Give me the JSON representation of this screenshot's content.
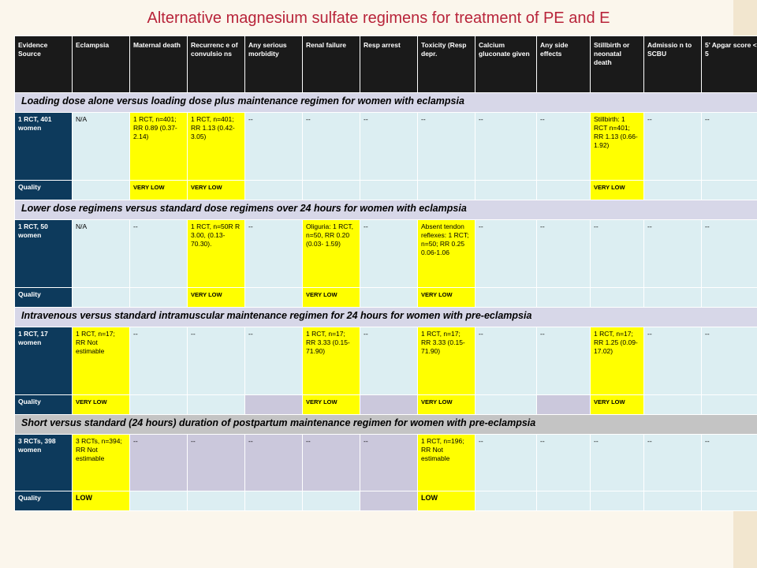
{
  "title": "Alternative magnesium sulfate regimens for treatment of PE and E",
  "headers": [
    "Evidence Source",
    "Eclampsia",
    "Maternal death",
    "Recurrenc e of convulsio ns",
    "Any serious morbidity",
    "Renal failure",
    "Resp arrest",
    "Toxicity (Resp depr.",
    "Calcium gluconate given",
    "Any side effects",
    "Stillbirth or neonatal death",
    "Admissio n to SCBU",
    "5' Apgar score < 5"
  ],
  "sections": [
    {
      "title": "Loading dose alone versus loading dose plus maintenance regimen for women with eclampsia",
      "row": [
        "1 RCT, 401 women",
        "N/A",
        "1 RCT, n=401; RR 0.89 (0.37-2.14)",
        "1 RCT, n=401; RR 1.13 (0.42-3.05)",
        "--",
        "--",
        "--",
        "--",
        "--",
        "--",
        "Stillbirth: 1 RCT n=401; RR 1.13 (0.66- 1.92)",
        "--",
        "--"
      ],
      "quality": [
        "Quality",
        "",
        "VERY LOW",
        "VERY LOW",
        "",
        "",
        "",
        "",
        "",
        "",
        "VERY LOW",
        "",
        ""
      ]
    },
    {
      "title": "Lower dose regimens versus standard dose regimens over 24 hours for women with eclampsia",
      "row": [
        "1 RCT, 50 women",
        "N/A",
        "--",
        "1 RCT, n=50R R 3.00, (0.13- 70.30).",
        "--",
        "Oliguria: 1 RCT, n=50, RR 0.20 (0.03- 1.59)",
        "--",
        "Absent tendon reflexes: 1 RCT; n=50; RR 0.25 0.06-1.06",
        "--",
        "--",
        "--",
        "--",
        "--"
      ],
      "quality": [
        "Quality",
        "",
        "",
        "VERY LOW",
        "",
        "VERY LOW",
        "",
        "VERY LOW",
        "",
        "",
        "",
        "",
        ""
      ]
    },
    {
      "title": "Intravenous versus standard intramuscular maintenance regimen for 24 hours for women with pre-eclampsia",
      "row": [
        "1 RCT, 17 women",
        "1 RCT, n=17; RR Not estimable",
        "--",
        "--",
        "--",
        "1 RCT, n=17; RR 3.33 (0.15- 71.90)",
        "--",
        "1 RCT, n=17; RR 3.33 (0.15- 71.90)",
        "--",
        "--",
        "1 RCT, n=17; RR 1.25 (0.09- 17.02)",
        "--",
        "--"
      ],
      "quality": [
        "Quality",
        "VERY LOW",
        "",
        "",
        "",
        "VERY LOW",
        "",
        "VERY LOW",
        "",
        "",
        "VERY LOW",
        "",
        ""
      ]
    },
    {
      "title": "Short versus standard (24 hours) duration of postpartum maintenance regimen for women with pre-eclampsia",
      "row": [
        "3 RCTs, 398 women",
        "3 RCTs, n=394; RR Not estimable",
        "--",
        "--",
        "--",
        "--",
        "--",
        "1 RCT, n=196; RR Not estimable",
        "--",
        "--",
        "--",
        "--",
        "--"
      ],
      "quality": [
        "Quality",
        "LOW",
        "",
        "",
        "",
        "",
        "",
        "LOW",
        "",
        "",
        "",
        "",
        ""
      ]
    }
  ]
}
